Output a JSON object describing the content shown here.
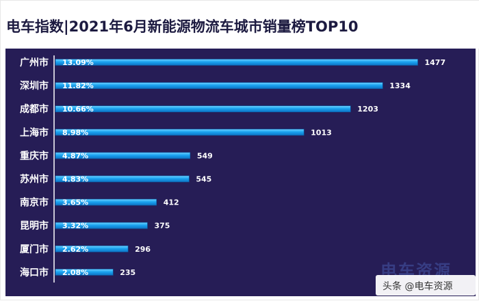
{
  "header": {
    "title": "电车指数|2021年6月新能源物流车城市销量榜TOP10"
  },
  "chart_data": {
    "type": "bar",
    "orientation": "horizontal",
    "title": "电车指数|2021年6月新能源物流车城市销量榜TOP10",
    "categories": [
      "广州市",
      "深圳市",
      "成都市",
      "上海市",
      "重庆市",
      "苏州市",
      "南京市",
      "昆明市",
      "厦门市",
      "海口市"
    ],
    "values": [
      1477,
      1334,
      1203,
      1013,
      549,
      545,
      412,
      375,
      296,
      235
    ],
    "shares": [
      "13.09%",
      "11.82%",
      "10.66%",
      "8.98%",
      "4.87%",
      "4.83%",
      "3.65%",
      "3.32%",
      "2.62%",
      "2.08%"
    ],
    "colors": {
      "bar": "#1aa3f0",
      "bar_light": "#64cdff",
      "background": "#261d56",
      "text": "#ffffff"
    }
  },
  "watermark": {
    "text": "电车资源"
  },
  "credit": {
    "text": "头条 @电车资源"
  }
}
